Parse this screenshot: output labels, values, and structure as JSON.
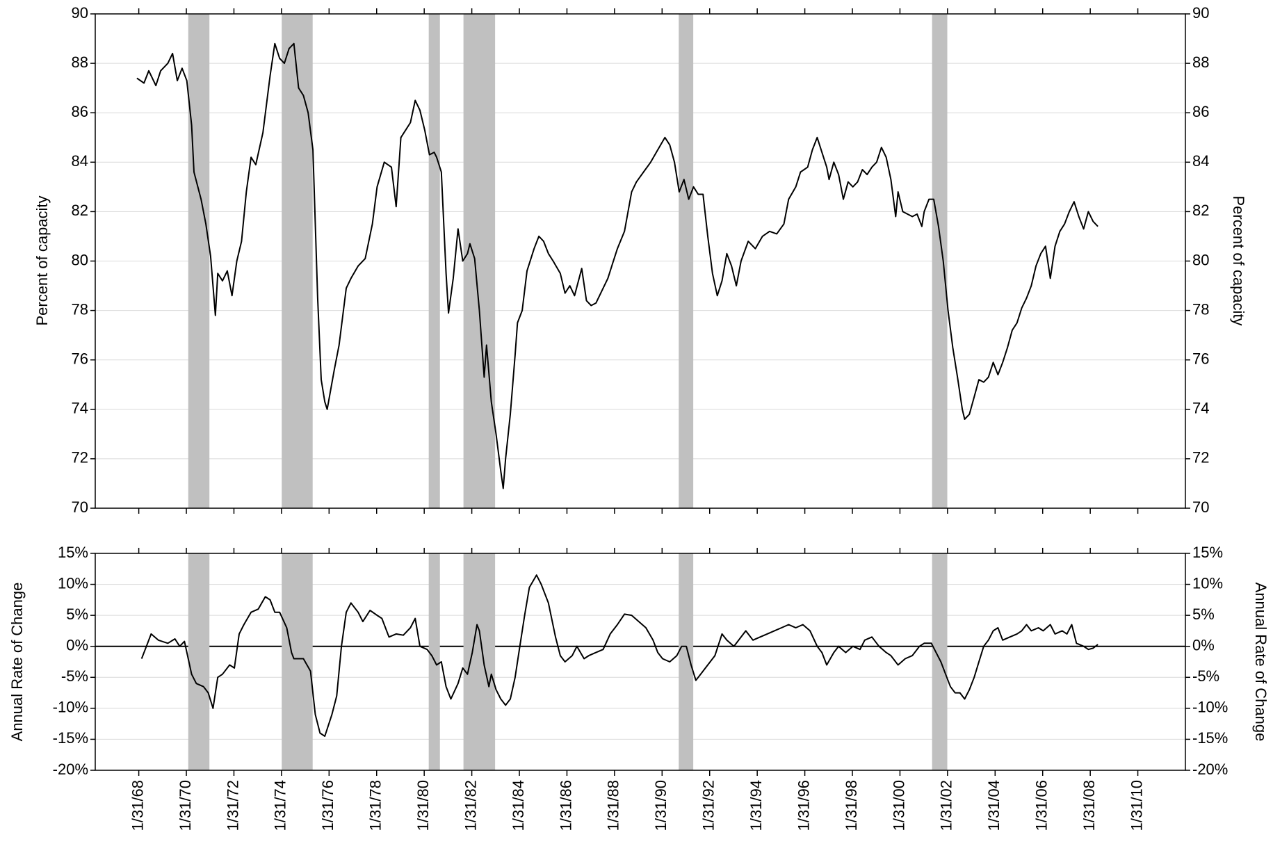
{
  "chart_data": [
    {
      "type": "line",
      "ylabel": "Percent of capacity",
      "y2label": "Percent of capacity",
      "xlim": [
        1966.25,
        2012.08
      ],
      "ylim": [
        70,
        90
      ],
      "yticks": [
        70,
        72,
        74,
        76,
        78,
        80,
        82,
        84,
        86,
        88,
        90
      ],
      "y2lim": [
        70,
        90
      ],
      "y2ticks": [
        70,
        72,
        74,
        76,
        78,
        80,
        82,
        84,
        86,
        88,
        90
      ],
      "grid": true,
      "xticks": [
        1968.08,
        1970.08,
        1972.08,
        1974.08,
        1976.08,
        1978.08,
        1980.08,
        1982.08,
        1984.08,
        1986.08,
        1988.08,
        1990.08,
        1992.08,
        1994.08,
        1996.08,
        1998.08,
        2000.08,
        2002.08,
        2004.08,
        2006.08,
        2008.08,
        2010.08
      ],
      "recessions": [
        [
          1970.16,
          1971.05
        ],
        [
          1974.09,
          1975.39
        ],
        [
          1980.27,
          1980.74
        ],
        [
          1981.73,
          1983.06
        ],
        [
          1990.78,
          1991.39
        ],
        [
          2001.43,
          2002.07
        ]
      ],
      "x": [
        1968.0,
        1968.3,
        1968.5,
        1968.8,
        1969.0,
        1969.3,
        1969.5,
        1969.7,
        1969.9,
        1970.1,
        1970.3,
        1970.4,
        1970.7,
        1970.9,
        1971.1,
        1971.3,
        1971.4,
        1971.6,
        1971.8,
        1972.0,
        1972.2,
        1972.4,
        1972.6,
        1972.8,
        1973.0,
        1973.3,
        1973.6,
        1973.8,
        1974.0,
        1974.2,
        1974.4,
        1974.6,
        1974.8,
        1975.0,
        1975.2,
        1975.4,
        1975.6,
        1975.75,
        1975.9,
        1976.0,
        1976.3,
        1976.5,
        1976.8,
        1977.0,
        1977.3,
        1977.6,
        1977.9,
        1978.1,
        1978.4,
        1978.7,
        1978.9,
        1979.1,
        1979.3,
        1979.5,
        1979.7,
        1979.9,
        1980.1,
        1980.3,
        1980.5,
        1980.6,
        1980.8,
        1981.0,
        1981.1,
        1981.3,
        1981.5,
        1981.7,
        1981.9,
        1982.0,
        1982.2,
        1982.4,
        1982.6,
        1982.7,
        1982.9,
        1983.1,
        1983.3,
        1983.4,
        1983.5,
        1983.7,
        1983.9,
        1984.0,
        1984.2,
        1984.4,
        1984.7,
        1984.9,
        1985.1,
        1985.3,
        1985.5,
        1985.8,
        1986.0,
        1986.2,
        1986.4,
        1986.7,
        1986.9,
        1987.1,
        1987.3,
        1987.6,
        1987.8,
        1988.0,
        1988.2,
        1988.5,
        1988.8,
        1989.0,
        1989.3,
        1989.6,
        1989.9,
        1990.2,
        1990.4,
        1990.6,
        1990.8,
        1991.0,
        1991.2,
        1991.4,
        1991.6,
        1991.8,
        1992.0,
        1992.2,
        1992.4,
        1992.6,
        1992.8,
        1993.0,
        1993.2,
        1993.4,
        1993.7,
        1994.0,
        1994.3,
        1994.6,
        1994.9,
        1995.2,
        1995.4,
        1995.7,
        1995.9,
        1996.2,
        1996.4,
        1996.6,
        1996.8,
        1997.0,
        1997.1,
        1997.3,
        1997.5,
        1997.7,
        1997.9,
        1998.1,
        1998.3,
        1998.5,
        1998.7,
        1998.9,
        1999.1,
        1999.3,
        1999.5,
        1999.7,
        1999.9,
        2000.0,
        2000.2,
        2000.4,
        2000.6,
        2000.8,
        2001.0,
        2001.1,
        2001.3,
        2001.5,
        2001.7,
        2001.9,
        2002.1,
        2002.3,
        2002.5,
        2002.7,
        2002.8,
        2003.0,
        2003.2,
        2003.4,
        2003.6,
        2003.8,
        2004.0,
        2004.2,
        2004.4,
        2004.6,
        2004.8,
        2005.0,
        2005.2,
        2005.4,
        2005.6,
        2005.8,
        2006.0,
        2006.2,
        2006.4,
        2006.6,
        2006.8,
        2007.0,
        2007.2,
        2007.4,
        2007.6,
        2007.8,
        2008.0,
        2008.2,
        2008.4
      ],
      "series": [
        {
          "color": "#000000",
          "values": [
            87.4,
            87.2,
            87.7,
            87.1,
            87.7,
            88.0,
            88.4,
            87.3,
            87.8,
            87.3,
            85.5,
            83.6,
            82.5,
            81.5,
            80.2,
            77.8,
            79.5,
            79.2,
            79.6,
            78.6,
            80.0,
            80.8,
            82.8,
            84.2,
            83.9,
            85.2,
            87.5,
            88.8,
            88.2,
            88.0,
            88.6,
            88.8,
            87.0,
            86.7,
            86.0,
            84.5,
            78.5,
            75.2,
            74.3,
            74.0,
            75.6,
            76.6,
            78.9,
            79.3,
            79.8,
            80.1,
            81.5,
            83.0,
            84.0,
            83.8,
            82.2,
            85.0,
            85.3,
            85.6,
            86.5,
            86.1,
            85.3,
            84.3,
            84.4,
            84.2,
            83.6,
            79.5,
            77.9,
            79.3,
            81.3,
            80.0,
            80.3,
            80.7,
            80.1,
            78.0,
            75.3,
            76.6,
            74.3,
            73.0,
            71.5,
            70.8,
            72.0,
            73.8,
            76.2,
            77.5,
            78.0,
            79.6,
            80.5,
            81.0,
            80.8,
            80.3,
            80.0,
            79.5,
            78.7,
            79.0,
            78.6,
            79.7,
            78.4,
            78.2,
            78.3,
            78.9,
            79.3,
            79.9,
            80.5,
            81.2,
            82.8,
            83.2,
            83.6,
            84.0,
            84.5,
            85.0,
            84.7,
            84.0,
            82.8,
            83.3,
            82.5,
            83.0,
            82.7,
            82.7,
            81.0,
            79.5,
            78.6,
            79.2,
            80.3,
            79.8,
            79.0,
            80.0,
            80.8,
            80.5,
            81.0,
            81.2,
            81.1,
            81.5,
            82.5,
            83.0,
            83.6,
            83.8,
            84.5,
            85.0,
            84.4,
            83.8,
            83.3,
            84.0,
            83.5,
            82.5,
            83.2,
            83.0,
            83.2,
            83.7,
            83.5,
            83.8,
            84.0,
            84.6,
            84.2,
            83.3,
            81.8,
            82.8,
            82.0,
            81.9,
            81.8,
            81.9,
            81.4,
            82.0,
            82.5,
            82.5,
            81.4,
            80.0,
            78.0,
            76.5,
            75.3,
            74.0,
            73.6,
            73.8,
            74.5,
            75.2,
            75.1,
            75.3,
            75.9,
            75.4,
            75.9,
            76.5,
            77.2,
            77.5,
            78.1,
            78.5,
            79.0,
            79.8,
            80.3,
            80.6,
            79.3,
            80.6,
            81.2,
            81.5,
            82.0,
            82.4,
            81.8,
            81.3,
            82.0,
            81.6,
            81.4
          ]
        }
      ]
    },
    {
      "type": "line",
      "ylabel": "Annual Rate of Change",
      "y2label": "Annual Rate of Change",
      "xlim": [
        1966.25,
        2012.08
      ],
      "ylim": [
        -20,
        15
      ],
      "yticks": [
        {
          "value": -20,
          "label": "-20%"
        },
        {
          "value": -15,
          "label": "-15%"
        },
        {
          "value": -10,
          "label": "-10%"
        },
        {
          "value": -5,
          "label": "-5%"
        },
        {
          "value": 0,
          "label": "0%"
        },
        {
          "value": 5,
          "label": "5%"
        },
        {
          "value": 10,
          "label": "10%"
        },
        {
          "value": 15,
          "label": "15%"
        }
      ],
      "y2lim": [
        -20,
        15
      ],
      "y2ticks": [
        {
          "value": -20,
          "label": "-20%"
        },
        {
          "value": -15,
          "label": "-15%"
        },
        {
          "value": -10,
          "label": "-10%"
        },
        {
          "value": -5,
          "label": "-5%"
        },
        {
          "value": 0,
          "label": "0%"
        },
        {
          "value": 5,
          "label": "5%"
        },
        {
          "value": 10,
          "label": "10%"
        },
        {
          "value": 15,
          "label": "15%"
        }
      ],
      "grid": true,
      "xticks": [
        {
          "value": 1968.08,
          "label": "1/31/68"
        },
        {
          "value": 1970.08,
          "label": "1/31/70"
        },
        {
          "value": 1972.08,
          "label": "1/31/72"
        },
        {
          "value": 1974.08,
          "label": "1/31/74"
        },
        {
          "value": 1976.08,
          "label": "1/31/76"
        },
        {
          "value": 1978.08,
          "label": "1/31/78"
        },
        {
          "value": 1980.08,
          "label": "1/31/80"
        },
        {
          "value": 1982.08,
          "label": "1/31/82"
        },
        {
          "value": 1984.08,
          "label": "1/31/84"
        },
        {
          "value": 1986.08,
          "label": "1/31/86"
        },
        {
          "value": 1988.08,
          "label": "1/31/88"
        },
        {
          "value": 1990.08,
          "label": "1/31/90"
        },
        {
          "value": 1992.08,
          "label": "1/31/92"
        },
        {
          "value": 1994.08,
          "label": "1/31/94"
        },
        {
          "value": 1996.08,
          "label": "1/31/96"
        },
        {
          "value": 1998.08,
          "label": "1/31/98"
        },
        {
          "value": 2000.08,
          "label": "1/31/00"
        },
        {
          "value": 2002.08,
          "label": "1/31/02"
        },
        {
          "value": 2004.08,
          "label": "1/31/04"
        },
        {
          "value": 2006.08,
          "label": "1/31/06"
        },
        {
          "value": 2008.08,
          "label": "1/31/08"
        },
        {
          "value": 2010.08,
          "label": "1/31/10"
        }
      ],
      "recessions": [
        [
          1970.16,
          1971.05
        ],
        [
          1974.09,
          1975.39
        ],
        [
          1980.27,
          1980.74
        ],
        [
          1981.73,
          1983.06
        ],
        [
          1990.78,
          1991.39
        ],
        [
          2001.43,
          2002.07
        ]
      ],
      "x": [
        1968.2,
        1968.4,
        1968.6,
        1968.9,
        1969.3,
        1969.6,
        1969.8,
        1970.0,
        1970.3,
        1970.5,
        1970.8,
        1971.0,
        1971.2,
        1971.4,
        1971.6,
        1971.9,
        1972.1,
        1972.3,
        1972.5,
        1972.8,
        1973.1,
        1973.4,
        1973.6,
        1973.8,
        1974.0,
        1974.3,
        1974.5,
        1974.6,
        1975.0,
        1975.3,
        1975.5,
        1975.7,
        1975.9,
        1976.2,
        1976.4,
        1976.6,
        1976.8,
        1977.0,
        1977.3,
        1977.5,
        1977.8,
        1978.1,
        1978.3,
        1978.6,
        1978.9,
        1979.2,
        1979.5,
        1979.7,
        1979.9,
        1980.2,
        1980.4,
        1980.6,
        1980.8,
        1981.0,
        1981.2,
        1981.5,
        1981.7,
        1981.9,
        1982.1,
        1982.3,
        1982.4,
        1982.6,
        1982.8,
        1982.9,
        1983.1,
        1983.3,
        1983.5,
        1983.7,
        1983.9,
        1984.1,
        1984.3,
        1984.5,
        1984.8,
        1985.0,
        1985.3,
        1985.6,
        1985.8,
        1986.0,
        1986.3,
        1986.5,
        1986.8,
        1987.0,
        1987.3,
        1987.6,
        1987.9,
        1988.2,
        1988.5,
        1988.8,
        1989.1,
        1989.4,
        1989.7,
        1989.9,
        1990.1,
        1990.4,
        1990.7,
        1990.9,
        1991.1,
        1991.3,
        1991.5,
        1991.8,
        1992.0,
        1992.3,
        1992.6,
        1992.8,
        1993.1,
        1993.3,
        1993.6,
        1993.9,
        1994.2,
        1994.5,
        1994.8,
        1995.1,
        1995.4,
        1995.7,
        1996.0,
        1996.3,
        1996.6,
        1996.8,
        1997.0,
        1997.3,
        1997.5,
        1997.8,
        1998.1,
        1998.4,
        1998.6,
        1998.9,
        1999.2,
        1999.5,
        1999.7,
        2000.0,
        2000.3,
        2000.6,
        2000.9,
        2001.1,
        2001.4,
        2001.6,
        2001.8,
        2002.0,
        2002.2,
        2002.4,
        2002.6,
        2002.8,
        2003.0,
        2003.2,
        2003.4,
        2003.6,
        2003.8,
        2004.0,
        2004.2,
        2004.4,
        2004.7,
        2005.0,
        2005.2,
        2005.4,
        2005.6,
        2005.9,
        2006.1,
        2006.4,
        2006.6,
        2006.9,
        2007.1,
        2007.3,
        2007.5,
        2007.8,
        2008.0,
        2008.2,
        2008.4
      ],
      "series": [
        {
          "color": "#000000",
          "values": [
            -2,
            0,
            2,
            1,
            0.5,
            1.2,
            0,
            0.8,
            -4.5,
            -6,
            -6.5,
            -7.5,
            -10,
            -5,
            -4.5,
            -3,
            -3.5,
            2,
            3.5,
            5.5,
            6,
            8,
            7.5,
            5.5,
            5.5,
            3,
            -1,
            -2,
            -2,
            -4,
            -11,
            -14,
            -14.5,
            -11,
            -8,
            0,
            5.5,
            7,
            5.5,
            4,
            5.8,
            5,
            4.5,
            1.5,
            2,
            1.8,
            3,
            4.5,
            0,
            -0.5,
            -1.5,
            -3,
            -2.5,
            -6.5,
            -8.5,
            -6,
            -3.5,
            -4.5,
            -1,
            3.5,
            2.5,
            -3,
            -6.5,
            -4.5,
            -7,
            -8.5,
            -9.5,
            -8.5,
            -5,
            0,
            5,
            9.5,
            11.5,
            10,
            7,
            1.5,
            -1.5,
            -2.5,
            -1.5,
            0,
            -2,
            -1.5,
            -1,
            -0.5,
            2,
            3.5,
            5.2,
            5,
            4,
            3,
            1,
            -1,
            -2,
            -2.5,
            -1.5,
            0,
            0,
            -3,
            -5.5,
            -4,
            -3,
            -1.5,
            2,
            1,
            0,
            1,
            2.5,
            1,
            1.5,
            2,
            2.5,
            3,
            3.5,
            3,
            3.5,
            2.5,
            0,
            -1,
            -3,
            -1,
            0,
            -1,
            0,
            -0.5,
            1,
            1.5,
            0,
            -1,
            -1.5,
            -3,
            -2,
            -1.5,
            0,
            0.5,
            0.5,
            -1,
            -2.5,
            -4.5,
            -6.5,
            -7.5,
            -7.5,
            -8.5,
            -7,
            -5,
            -2.5,
            0,
            1,
            2.5,
            3,
            1,
            1.5,
            2,
            2.5,
            3.5,
            2.5,
            3,
            2.5,
            3.5,
            2,
            2.5,
            2,
            3.5,
            0.5,
            0,
            -0.5,
            -0.3,
            0.3
          ]
        }
      ]
    }
  ]
}
